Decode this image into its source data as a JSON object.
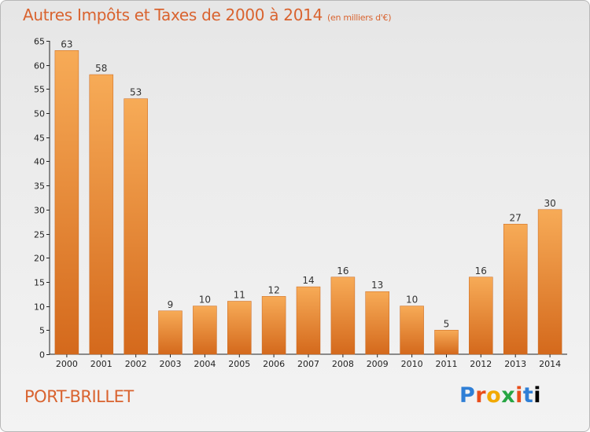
{
  "header": {
    "title": "Autres Impôts et Taxes de 2000 à 2014",
    "unit": "(en milliers d'€)"
  },
  "footer": {
    "place": "PORT-BRILLET",
    "logo": "Proxiti"
  },
  "chart_data": {
    "type": "bar",
    "title": "Autres Impôts et Taxes de 2000 à 2014",
    "subtitle": "(en milliers d'€)",
    "xlabel": "",
    "ylabel": "",
    "categories": [
      "2000",
      "2001",
      "2002",
      "2003",
      "2004",
      "2005",
      "2006",
      "2007",
      "2008",
      "2009",
      "2010",
      "2011",
      "2012",
      "2013",
      "2014"
    ],
    "values": [
      63,
      58,
      53,
      9,
      10,
      11,
      12,
      14,
      16,
      13,
      10,
      5,
      16,
      27,
      30
    ],
    "ylim": [
      0,
      65
    ],
    "yticks": [
      0,
      5,
      10,
      15,
      20,
      25,
      30,
      35,
      40,
      45,
      50,
      55,
      60,
      65
    ],
    "grid": false,
    "legend": "none",
    "colors": {
      "bar_light": "#f6a955",
      "bar_dark": "#d66f1f",
      "title": "#d9632f"
    }
  }
}
